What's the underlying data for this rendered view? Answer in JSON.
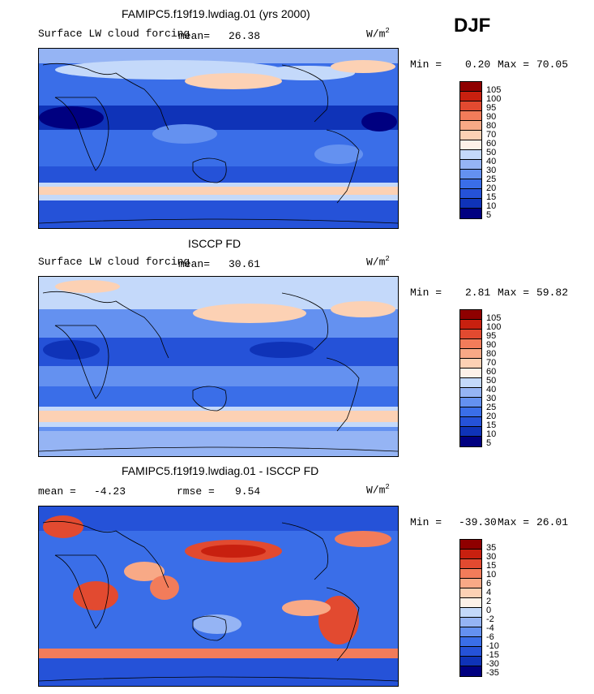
{
  "season": "DJF",
  "colors": {
    "ramp_full": [
      "#000080",
      "#0f33b8",
      "#2552d8",
      "#3a6ee8",
      "#6491f0",
      "#95b4f4",
      "#c4d9fa",
      "#fdf1e8",
      "#fcd1b4",
      "#f8a986",
      "#f27c5a",
      "#e24a30",
      "#c8200f",
      "#8f0000"
    ],
    "ramp_diff": [
      "#000080",
      "#0f33b8",
      "#2552d8",
      "#3a6ee8",
      "#6491f0",
      "#95b4f4",
      "#c4d9fa",
      "#fdf1e8",
      "#fcd1b4",
      "#f8a986",
      "#f27c5a",
      "#e24a30",
      "#c8200f",
      "#8f0000"
    ],
    "land_outline": "#000000"
  },
  "panels": [
    {
      "title": "FAMIPC5.f19f19.lwdiag.01 (yrs 2000)",
      "subtitle": "Surface LW cloud forcing",
      "mean_label": "mean=",
      "mean_value": "26.38",
      "units": "W/m",
      "units_exp": "2",
      "min_label": "Min =",
      "min_value": "0.20",
      "max_label": "Max =",
      "max_value": "70.05",
      "colorbar_labels": [
        "105",
        "100",
        "95",
        "90",
        "80",
        "70",
        "60",
        "50",
        "40",
        "30",
        "25",
        "20",
        "15",
        "10",
        "5"
      ]
    },
    {
      "title": "ISCCP FD",
      "subtitle": "Surface LW cloud forcing",
      "mean_label": "mean=",
      "mean_value": "30.61",
      "units": "W/m",
      "units_exp": "2",
      "min_label": "Min =",
      "min_value": "2.81",
      "max_label": "Max =",
      "max_value": "59.82",
      "colorbar_labels": [
        "105",
        "100",
        "95",
        "90",
        "80",
        "70",
        "60",
        "50",
        "40",
        "30",
        "25",
        "20",
        "15",
        "10",
        "5"
      ]
    },
    {
      "title": "FAMIPC5.f19f19.lwdiag.01 - ISCCP FD",
      "mean_label": "mean =",
      "mean_value": "-4.23",
      "rmse_label": "rmse =",
      "rmse_value": "9.54",
      "units": "W/m",
      "units_exp": "2",
      "min_label": "Min =",
      "min_value": "-39.30",
      "max_label": "Max =",
      "max_value": "26.01",
      "colorbar_labels": [
        "35",
        "30",
        "15",
        "10",
        "6",
        "4",
        "2",
        "0",
        "-2",
        "-4",
        "-6",
        "-10",
        "-15",
        "-30",
        "-35"
      ]
    }
  ]
}
